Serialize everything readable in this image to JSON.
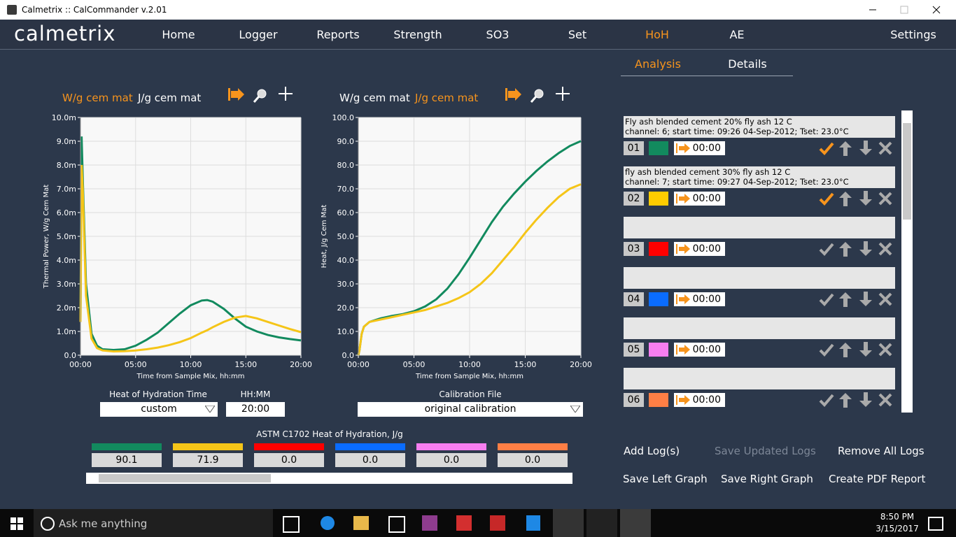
{
  "window": {
    "title": "Calmetrix :: CalCommander v.2.01"
  },
  "nav": {
    "brand": "calmetrix",
    "items": [
      "Home",
      "Logger",
      "Reports",
      "Strength",
      "SO3",
      "Set",
      "HoH",
      "AE"
    ],
    "settings": "Settings",
    "active": 6
  },
  "tabs": {
    "items": [
      "Analysis",
      "Details"
    ],
    "active": 0
  },
  "left_chart": {
    "type": "line",
    "units": [
      "W/g cem mat",
      "J/g cem mat"
    ],
    "active_unit": 0,
    "ylabel": "Thermal Power, W/g Cem Mat",
    "xlabel": "Time from Sample Mix, hh:mm",
    "x": [
      0,
      0.1,
      0.2,
      0.5,
      1,
      1.5,
      2,
      3,
      4,
      5,
      6,
      7,
      8,
      9,
      10,
      11,
      11.5,
      12,
      13,
      14,
      15,
      16,
      17,
      18,
      19,
      20
    ],
    "xlim": [
      0,
      20
    ],
    "xticks": [
      {
        "value": 0,
        "label": "00:00"
      },
      {
        "value": 5,
        "label": "05:00"
      },
      {
        "value": 10,
        "label": "10:00"
      },
      {
        "value": 15,
        "label": "15:00"
      },
      {
        "value": 20,
        "label": "20:00"
      }
    ],
    "ylim": [
      0,
      10
    ],
    "yticks": [
      {
        "value": 0,
        "label": "0.0"
      },
      {
        "value": 1,
        "label": "1.0m"
      },
      {
        "value": 2,
        "label": "2.0m"
      },
      {
        "value": 3,
        "label": "3.0m"
      },
      {
        "value": 4,
        "label": "4.0m"
      },
      {
        "value": 5,
        "label": "5.0m"
      },
      {
        "value": 6,
        "label": "6.0m"
      },
      {
        "value": 7,
        "label": "7.0m"
      },
      {
        "value": 8,
        "label": "8.0m"
      },
      {
        "value": 9,
        "label": "9.0m"
      },
      {
        "value": 10,
        "label": "10.0m"
      }
    ],
    "grid": true,
    "series": [
      {
        "color": "#128a5e",
        "values": [
          1.4,
          9.2,
          7.5,
          3.0,
          0.9,
          0.4,
          0.25,
          0.22,
          0.25,
          0.4,
          0.65,
          0.95,
          1.35,
          1.75,
          2.1,
          2.3,
          2.32,
          2.25,
          1.95,
          1.55,
          1.2,
          1.0,
          0.85,
          0.75,
          0.68,
          0.62
        ]
      },
      {
        "color": "#f5c518",
        "values": [
          1.4,
          8.0,
          7.0,
          2.5,
          0.7,
          0.3,
          0.2,
          0.16,
          0.17,
          0.2,
          0.25,
          0.32,
          0.42,
          0.55,
          0.72,
          0.95,
          1.05,
          1.18,
          1.4,
          1.58,
          1.65,
          1.55,
          1.4,
          1.25,
          1.1,
          0.97
        ]
      }
    ]
  },
  "right_chart": {
    "type": "line",
    "units": [
      "W/g cem mat",
      "J/g cem mat"
    ],
    "active_unit": 1,
    "ylabel": "Heat, J/g Cem Mat",
    "xlabel": "Time from Sample Mix, hh:mm",
    "x": [
      0,
      0.1,
      0.3,
      0.5,
      1,
      2,
      3,
      4,
      5,
      6,
      7,
      8,
      9,
      10,
      11,
      12,
      13,
      14,
      15,
      16,
      17,
      18,
      19,
      20
    ],
    "xlim": [
      0,
      20
    ],
    "xticks": [
      {
        "value": 0,
        "label": "00:00"
      },
      {
        "value": 5,
        "label": "05:00"
      },
      {
        "value": 10,
        "label": "10:00"
      },
      {
        "value": 15,
        "label": "15:00"
      },
      {
        "value": 20,
        "label": "20:00"
      }
    ],
    "ylim": [
      0,
      100
    ],
    "yticks": [
      {
        "value": 0,
        "label": "0.0"
      },
      {
        "value": 10,
        "label": "10.0"
      },
      {
        "value": 20,
        "label": "20.0"
      },
      {
        "value": 30,
        "label": "30.0"
      },
      {
        "value": 40,
        "label": "40.0"
      },
      {
        "value": 50,
        "label": "50.0"
      },
      {
        "value": 60,
        "label": "60.0"
      },
      {
        "value": 70,
        "label": "70.0"
      },
      {
        "value": 80,
        "label": "80.0"
      },
      {
        "value": 90,
        "label": "90.0"
      },
      {
        "value": 100,
        "label": "100.0"
      }
    ],
    "grid": true,
    "series": [
      {
        "color": "#128a5e",
        "values": [
          0,
          2,
          9,
          12,
          14,
          15.5,
          16.5,
          17.3,
          18.5,
          20.5,
          23.5,
          28,
          34,
          41,
          48.5,
          56,
          62.5,
          68,
          73,
          77.5,
          81.5,
          85,
          88,
          90.1
        ]
      },
      {
        "color": "#f5c518",
        "values": [
          0,
          2,
          9,
          12,
          14,
          15,
          16,
          17,
          18,
          19,
          20.5,
          22,
          24,
          26.5,
          30,
          34.5,
          40,
          45.5,
          51.5,
          57,
          62,
          66.5,
          70,
          71.9
        ]
      }
    ]
  },
  "controls": {
    "hoh_time_label": "Heat of Hydration Time",
    "hoh_time": "custom",
    "hhmm_label": "HH:MM",
    "hhmm": "20:00",
    "calibration_label": "Calibration File",
    "calibration": "original calibration"
  },
  "results": {
    "title": "ASTM C1702 Heat of Hydration, J/g",
    "colors": [
      "#128a5e",
      "#f5c518",
      "#ff0000",
      "#0a6cff",
      "#f77ef0",
      "#ff7f45"
    ],
    "values": [
      "90.1",
      "71.9",
      "0.0",
      "0.0",
      "0.0",
      "0.0"
    ]
  },
  "logs": [
    {
      "number": "01",
      "color": "#128a5e",
      "line1": "Fly ash blended cement 20% fly ash 12 C",
      "line2": "channel: 6; start time: 09:26 04-Sep-2012; Tset: 23.0°C",
      "time": "00:00",
      "checked": true
    },
    {
      "number": "02",
      "color": "#ffcc00",
      "line1": "fly ash blended cement 30% fly ash 12 C",
      "line2": "channel: 7; start time: 09:27 04-Sep-2012; Tset: 23.0°C",
      "time": "00:00",
      "checked": true
    },
    {
      "number": "03",
      "color": "#ff0000",
      "time": "00:00",
      "checked": false
    },
    {
      "number": "04",
      "color": "#0a6cff",
      "time": "00:00",
      "checked": false
    },
    {
      "number": "05",
      "color": "#f77ef0",
      "time": "00:00",
      "checked": false
    },
    {
      "number": "06",
      "color": "#ff7f45",
      "time": "00:00",
      "checked": false
    }
  ],
  "buttons": {
    "add": "Add Log(s)",
    "save_updated": "Save Updated Logs",
    "remove_all": "Remove All Logs",
    "save_left": "Save Left Graph",
    "save_right": "Save Right Graph",
    "pdf": "Create PDF Report"
  },
  "taskbar": {
    "search": "Ask me anything",
    "time": "8:50 PM",
    "date": "3/15/2017"
  }
}
